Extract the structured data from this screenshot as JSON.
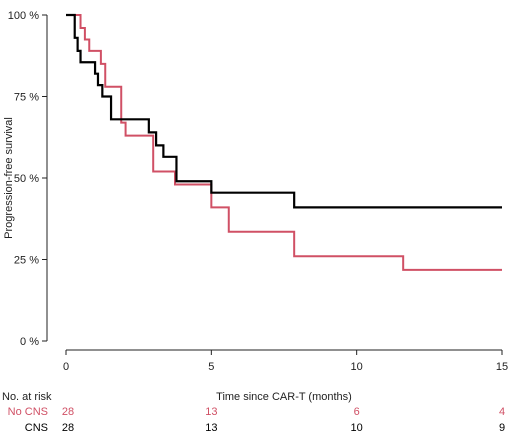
{
  "chart_data": {
    "type": "line",
    "title": "",
    "xlabel": "Time since CAR-T (months)",
    "ylabel": "Progression-free survival",
    "xlim": [
      0,
      15
    ],
    "ylim": [
      0,
      100
    ],
    "x_ticks": [
      0,
      5,
      10,
      15
    ],
    "y_ticks": [
      {
        "value": 0,
        "label": "0 %"
      },
      {
        "value": 25,
        "label": "25 %"
      },
      {
        "value": 50,
        "label": "50 %"
      },
      {
        "value": 75,
        "label": "75 %"
      },
      {
        "value": 100,
        "label": "100 %"
      }
    ],
    "grid": false,
    "series": [
      {
        "name": "No CNS",
        "color": "#d05065",
        "step": true,
        "x": [
          0,
          0.5,
          0.65,
          0.8,
          1.2,
          1.35,
          1.9,
          2.05,
          3.0,
          3.75,
          5.0,
          5.6,
          7.85,
          11.6,
          15
        ],
        "y": [
          100,
          96,
          92.5,
          89,
          85,
          78,
          67,
          63,
          52,
          48,
          41,
          33.5,
          26,
          21.8,
          21.8
        ]
      },
      {
        "name": "CNS",
        "color": "#000000",
        "step": true,
        "x": [
          0,
          0.3,
          0.4,
          0.5,
          0.65,
          1.0,
          1.1,
          1.25,
          1.55,
          2.4,
          2.85,
          3.1,
          3.35,
          3.8,
          5.0,
          7.85,
          15
        ],
        "y": [
          100,
          93,
          89,
          85.5,
          85.5,
          82,
          78.5,
          75,
          68,
          68,
          64,
          60,
          56.5,
          49,
          45.5,
          41,
          41
        ]
      }
    ],
    "risk_table": {
      "title": "No. at risk",
      "times": [
        0,
        5,
        10,
        15
      ],
      "rows": [
        {
          "label": "No CNS",
          "color": "#d05065",
          "counts": [
            "28",
            "13",
            "6",
            "4"
          ]
        },
        {
          "label": "CNS",
          "color": "#000000",
          "counts": [
            "28",
            "13",
            "10",
            "9"
          ]
        }
      ]
    }
  }
}
